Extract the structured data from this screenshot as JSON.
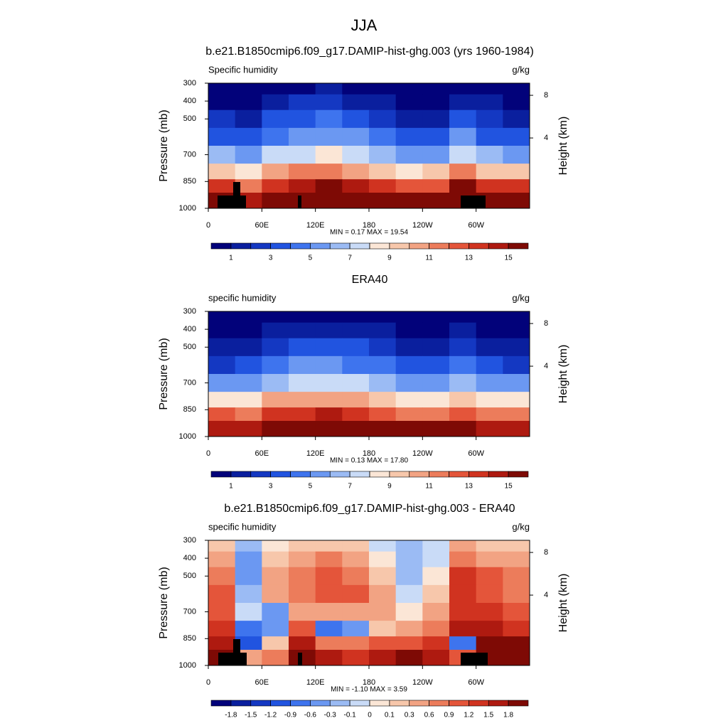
{
  "title": "JJA",
  "chart_data": [
    {
      "type": "contour",
      "title": "b.e21.B1850cmip6.f09_g17.DAMIP-hist-ghg.003 (yrs 1960-1984)",
      "left_string": "Specific humidity",
      "right_string": "g/kg",
      "ylabel": "Pressure (mb)",
      "y2label": "Height (km)",
      "stats_text": "MIN =   0.17  MAX =  19.54",
      "xlim": [
        0,
        360
      ],
      "xticks": [
        0,
        {
          "value": 60,
          "label": "60E"
        },
        {
          "value": 120,
          "label": "120E"
        },
        180,
        {
          "value": 240,
          "label": "120W"
        },
        {
          "value": 300,
          "label": "60W"
        }
      ],
      "ylim": [
        1000,
        300
      ],
      "yticks": [
        300,
        400,
        500,
        700,
        850,
        1000
      ],
      "y2ticks": [
        8,
        4
      ],
      "levels": [
        1,
        2,
        3,
        4,
        5,
        6,
        7,
        8,
        9,
        10,
        11,
        12,
        13,
        14,
        15
      ],
      "label_stride": 2,
      "colors": [
        "#02027a",
        "#0a1f9e",
        "#1438c2",
        "#2154e0",
        "#3e74ee",
        "#6b98f2",
        "#9bbbf4",
        "#c9dbf7",
        "#fbe6d6",
        "#f7c7ab",
        "#f2a383",
        "#ec7c5b",
        "#e4553a",
        "#d03320",
        "#ae1a10",
        "#7e0a05"
      ],
      "lon": [
        15,
        45,
        75,
        105,
        135,
        165,
        195,
        225,
        255,
        285,
        315,
        345
      ],
      "pressure": [
        325,
        400,
        500,
        600,
        700,
        800,
        875,
        950
      ],
      "values": [
        [
          0.4,
          0.4,
          0.6,
          0.9,
          1.0,
          0.9,
          0.6,
          0.4,
          0.4,
          0.8,
          0.5,
          0.4
        ],
        [
          0.9,
          0.9,
          1.4,
          2.0,
          2.2,
          1.9,
          1.3,
          0.9,
          0.9,
          1.8,
          1.1,
          0.9
        ],
        [
          2.0,
          1.8,
          3.0,
          3.8,
          4.0,
          3.5,
          2.6,
          1.7,
          1.8,
          3.5,
          2.2,
          1.9
        ],
        [
          3.6,
          3.2,
          4.8,
          5.6,
          5.8,
          5.2,
          4.2,
          3.0,
          3.2,
          5.2,
          3.8,
          3.4
        ],
        [
          6.0,
          5.5,
          7.0,
          7.8,
          8.0,
          7.4,
          6.5,
          5.2,
          5.6,
          7.5,
          6.2,
          5.8
        ],
        [
          9.5,
          8.5,
          10.0,
          11.0,
          11.2,
          10.6,
          9.5,
          8.5,
          9.0,
          11.0,
          9.8,
          9.2
        ],
        [
          13.5,
          11.0,
          13.0,
          14.5,
          15.0,
          14.2,
          13.0,
          12.0,
          12.5,
          15.0,
          13.5,
          13.0
        ],
        [
          16.5,
          14.0,
          16.0,
          17.5,
          18.0,
          17.5,
          16.5,
          16.0,
          16.0,
          17.5,
          16.5,
          16.0
        ]
      ]
    },
    {
      "type": "contour",
      "title": "ERA40",
      "left_string": "specific humidity",
      "right_string": "g/kg",
      "ylabel": "Pressure (mb)",
      "y2label": "Height (km)",
      "stats_text": "MIN =   0.13  MAX =  17.80",
      "xlim": [
        0,
        360
      ],
      "xticks": [
        0,
        {
          "value": 60,
          "label": "60E"
        },
        {
          "value": 120,
          "label": "120E"
        },
        180,
        {
          "value": 240,
          "label": "120W"
        },
        {
          "value": 300,
          "label": "60W"
        }
      ],
      "ylim": [
        1000,
        300
      ],
      "yticks": [
        300,
        400,
        500,
        700,
        850,
        1000
      ],
      "y2ticks": [
        8,
        4
      ],
      "levels": [
        1,
        2,
        3,
        4,
        5,
        6,
        7,
        8,
        9,
        10,
        11,
        12,
        13,
        14,
        15
      ],
      "label_stride": 2,
      "colors": [
        "#02027a",
        "#0a1f9e",
        "#1438c2",
        "#2154e0",
        "#3e74ee",
        "#6b98f2",
        "#9bbbf4",
        "#c9dbf7",
        "#fbe6d6",
        "#f7c7ab",
        "#f2a383",
        "#ec7c5b",
        "#e4553a",
        "#d03320",
        "#ae1a10",
        "#7e0a05"
      ],
      "lon": [
        15,
        45,
        75,
        105,
        135,
        165,
        195,
        225,
        255,
        285,
        315,
        345
      ],
      "pressure": [
        325,
        400,
        500,
        600,
        700,
        800,
        875,
        950
      ],
      "values": [
        [
          0.3,
          0.4,
          0.6,
          0.8,
          0.9,
          0.8,
          0.6,
          0.4,
          0.4,
          0.7,
          0.4,
          0.3
        ],
        [
          0.7,
          0.8,
          1.2,
          1.6,
          1.8,
          1.6,
          1.2,
          0.9,
          0.9,
          1.4,
          0.9,
          0.7
        ],
        [
          1.5,
          1.9,
          2.6,
          3.2,
          3.4,
          3.0,
          2.5,
          1.8,
          1.9,
          2.8,
          1.8,
          1.5
        ],
        [
          2.8,
          3.4,
          4.3,
          5.0,
          5.2,
          4.7,
          4.0,
          3.1,
          3.2,
          4.3,
          3.0,
          2.8
        ],
        [
          5.0,
          5.6,
          6.8,
          7.4,
          7.6,
          7.0,
          6.3,
          5.2,
          5.5,
          6.4,
          5.2,
          5.0
        ],
        [
          8.2,
          8.8,
          10.2,
          10.6,
          10.8,
          10.2,
          9.3,
          8.3,
          8.6,
          9.6,
          8.4,
          8.0
        ],
        [
          12.0,
          11.5,
          13.0,
          13.8,
          14.0,
          13.4,
          12.4,
          11.6,
          11.8,
          12.5,
          11.8,
          11.6
        ],
        [
          14.5,
          14.0,
          15.6,
          16.4,
          16.8,
          16.4,
          15.6,
          15.0,
          15.0,
          15.2,
          14.8,
          14.6
        ]
      ]
    },
    {
      "type": "contour",
      "title": "b.e21.B1850cmip6.f09_g17.DAMIP-hist-ghg.003 - ERA40",
      "left_string": "specific humidity",
      "right_string": "g/kg",
      "ylabel": "Pressure (mb)",
      "y2label": "Height (km)",
      "stats_text": "MIN =  -1.10  MAX =   3.59",
      "xlim": [
        0,
        360
      ],
      "xticks": [
        0,
        {
          "value": 60,
          "label": "60E"
        },
        {
          "value": 120,
          "label": "120E"
        },
        180,
        {
          "value": 240,
          "label": "120W"
        },
        {
          "value": 300,
          "label": "60W"
        }
      ],
      "ylim": [
        1000,
        300
      ],
      "yticks": [
        300,
        400,
        500,
        700,
        850,
        1000
      ],
      "y2ticks": [
        8,
        4
      ],
      "levels": [
        -1.8,
        -1.5,
        -1.2,
        -0.9,
        -0.6,
        -0.3,
        -0.1,
        0,
        0.1,
        0.3,
        0.6,
        0.9,
        1.2,
        1.5,
        1.8
      ],
      "label_stride": 1,
      "colors": [
        "#02027a",
        "#0a1f9e",
        "#1438c2",
        "#2154e0",
        "#3e74ee",
        "#6b98f2",
        "#9bbbf4",
        "#c9dbf7",
        "#fbe6d6",
        "#f7c7ab",
        "#f2a383",
        "#ec7c5b",
        "#e4553a",
        "#d03320",
        "#ae1a10",
        "#7e0a05"
      ],
      "lon": [
        15,
        45,
        75,
        105,
        135,
        165,
        195,
        225,
        255,
        285,
        315,
        345
      ],
      "pressure": [
        325,
        400,
        500,
        600,
        700,
        800,
        875,
        950
      ],
      "values": [
        [
          0.1,
          -0.2,
          0.0,
          0.2,
          0.2,
          0.1,
          -0.1,
          -0.2,
          -0.1,
          0.4,
          0.2,
          0.1
        ],
        [
          0.3,
          -0.4,
          0.2,
          0.5,
          0.6,
          0.4,
          0.0,
          -0.3,
          -0.1,
          0.8,
          0.5,
          0.3
        ],
        [
          0.6,
          -0.5,
          0.4,
          0.7,
          1.1,
          0.8,
          0.2,
          -0.2,
          0.0,
          1.2,
          0.9,
          0.6
        ],
        [
          0.9,
          -0.3,
          0.5,
          0.6,
          1.0,
          0.9,
          0.3,
          -0.1,
          0.2,
          1.3,
          1.1,
          0.8
        ],
        [
          1.0,
          -0.1,
          -0.6,
          0.5,
          0.4,
          0.5,
          0.3,
          0.0,
          0.3,
          1.4,
          1.3,
          1.0
        ],
        [
          1.2,
          -0.9,
          -0.4,
          1.0,
          -0.7,
          -0.5,
          0.2,
          0.3,
          0.6,
          1.6,
          1.5,
          1.3
        ],
        [
          1.5,
          -1.1,
          0.2,
          1.6,
          0.8,
          0.6,
          0.9,
          1.1,
          1.2,
          -0.8,
          1.8,
          2.0
        ],
        [
          1.8,
          0.5,
          0.6,
          2.2,
          1.5,
          1.3,
          1.6,
          1.8,
          1.6,
          0.9,
          2.4,
          3.5
        ]
      ]
    }
  ]
}
